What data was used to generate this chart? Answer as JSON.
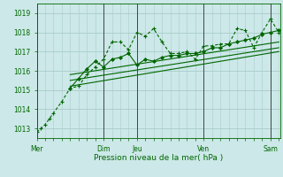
{
  "xlabel": "Pression niveau de la mer( hPa )",
  "bg_color": "#cce8e8",
  "grid_color": "#aacccc",
  "line_color": "#006600",
  "dark_line_color": "#444444",
  "ylim": [
    1012.5,
    1019.5
  ],
  "xlim": [
    0,
    175
  ],
  "xtick_labels": [
    "Mer",
    "Dim",
    "Jeu",
    "Ven",
    "Sam"
  ],
  "xtick_positions": [
    0,
    48,
    72,
    120,
    168
  ],
  "day_lines_x": [
    0,
    48,
    72,
    120,
    168
  ],
  "series1_x": [
    0,
    3,
    6,
    9,
    12,
    18,
    24,
    30,
    36,
    42,
    48,
    54,
    60,
    66,
    72,
    78,
    84,
    90,
    96,
    102,
    108,
    114,
    120,
    126,
    132,
    138,
    144,
    150,
    156,
    162,
    168,
    174
  ],
  "series1_y": [
    1012.8,
    1013.0,
    1013.2,
    1013.5,
    1013.8,
    1014.4,
    1015.1,
    1015.2,
    1015.8,
    1016.2,
    1016.6,
    1017.5,
    1017.5,
    1017.1,
    1018.0,
    1017.8,
    1018.2,
    1017.5,
    1016.9,
    1016.9,
    1017.0,
    1016.6,
    1017.3,
    1017.3,
    1017.4,
    1017.4,
    1018.2,
    1018.1,
    1017.2,
    1018.0,
    1018.7,
    1018.0
  ],
  "series2_x": [
    24,
    30,
    36,
    42,
    48,
    54,
    60,
    66,
    72,
    78,
    84,
    90,
    96,
    102,
    108,
    114,
    120,
    126,
    132,
    138,
    144,
    150,
    156,
    162,
    168,
    174
  ],
  "series2_y": [
    1015.1,
    1015.6,
    1016.1,
    1016.5,
    1016.2,
    1016.6,
    1016.7,
    1016.9,
    1016.3,
    1016.6,
    1016.5,
    1016.7,
    1016.8,
    1016.8,
    1016.9,
    1016.9,
    1017.0,
    1017.2,
    1017.2,
    1017.4,
    1017.5,
    1017.6,
    1017.7,
    1017.9,
    1018.0,
    1018.1
  ],
  "trend_lines": [
    {
      "x": [
        24,
        174
      ],
      "y": [
        1015.2,
        1017.0
      ]
    },
    {
      "x": [
        24,
        174
      ],
      "y": [
        1015.5,
        1017.2
      ]
    },
    {
      "x": [
        24,
        174
      ],
      "y": [
        1015.8,
        1017.5
      ]
    }
  ],
  "ytick_values": [
    1013,
    1014,
    1015,
    1016,
    1017,
    1018,
    1019
  ]
}
